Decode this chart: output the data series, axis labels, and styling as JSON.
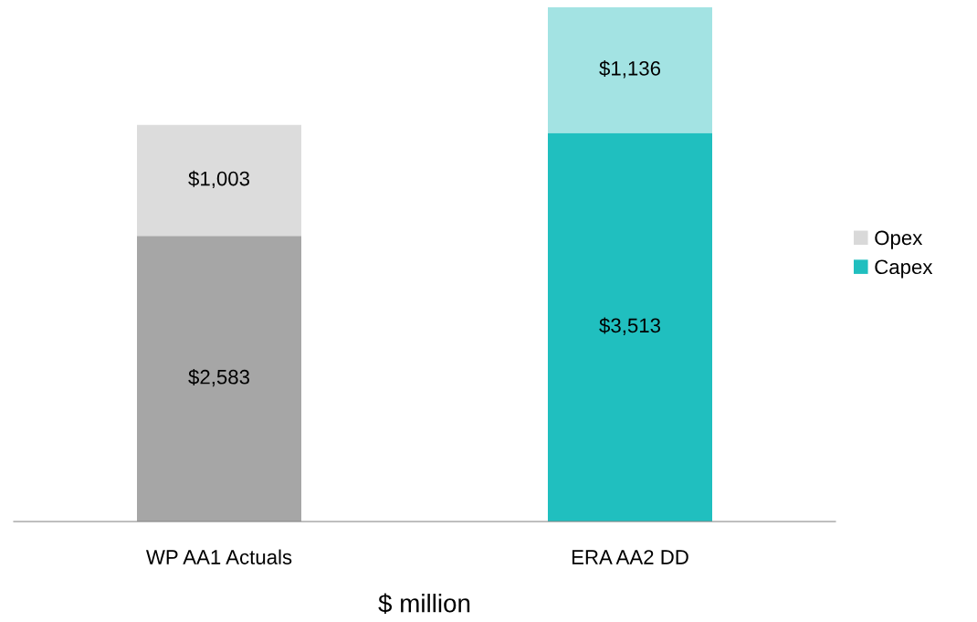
{
  "chart_data": {
    "type": "bar",
    "stacked": true,
    "xlabel": "$ million",
    "categories": [
      "WP AA1 Actuals",
      "ERA AA2 DD"
    ],
    "series": [
      {
        "name": "Capex",
        "color": "#20bfbf",
        "colors": [
          "#a6a6a6",
          "#20bfbf"
        ],
        "values": [
          2583,
          3513
        ],
        "value_labels": [
          "$2,583",
          "$3,513"
        ]
      },
      {
        "name": "Opex",
        "color": "#d9d9d9",
        "colors": [
          "#dcdcdc",
          "#a3e3e3"
        ],
        "values": [
          1003,
          1136
        ],
        "value_labels": [
          "$1,003",
          "$1,136"
        ]
      }
    ],
    "legend": "right",
    "grid": false
  }
}
